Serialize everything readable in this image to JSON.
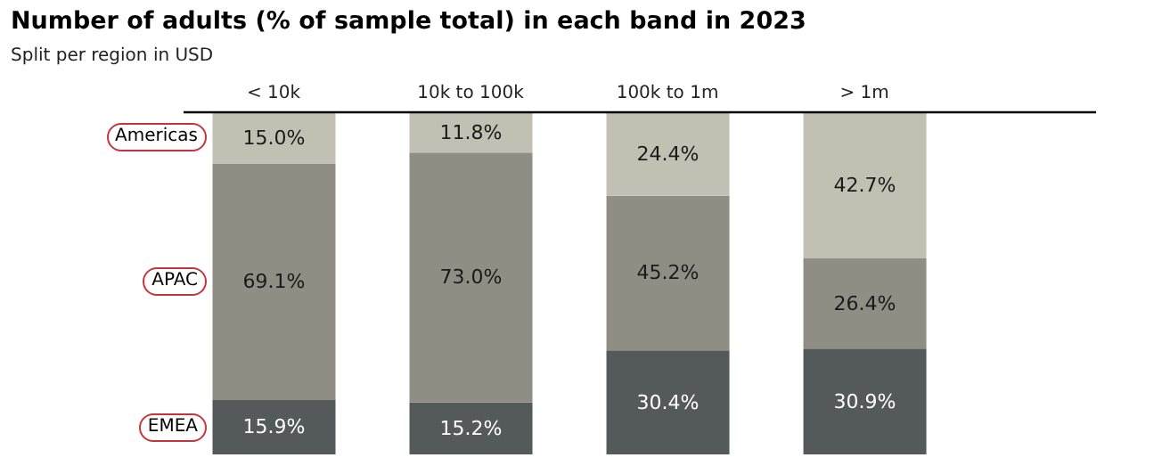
{
  "chart_data": {
    "type": "bar",
    "title": "Number of adults (% of sample total) in each band in 2023",
    "subtitle": "Split per region in USD",
    "categories": [
      "< 10k",
      "10k to 100k",
      "100k to 1m",
      "> 1m"
    ],
    "stacked": true,
    "legend": "left",
    "series": [
      {
        "name": "EMEA",
        "color": "#545959",
        "values": [
          15.9,
          15.2,
          30.4,
          30.9
        ],
        "value_labels": [
          "15.9%",
          "15.2%",
          "30.4%",
          "30.9%"
        ]
      },
      {
        "name": "APAC",
        "color": "#8e8e84",
        "values": [
          69.1,
          73.0,
          45.2,
          26.4
        ],
        "value_labels": [
          "69.1%",
          "73.0%",
          "45.2%",
          "26.4%"
        ]
      },
      {
        "name": "Americas",
        "color": "#c1c1b3",
        "values": [
          15.0,
          11.8,
          24.4,
          42.7
        ],
        "value_labels": [
          "15.0%",
          "11.8%",
          "24.4%",
          "42.7%"
        ]
      }
    ]
  }
}
